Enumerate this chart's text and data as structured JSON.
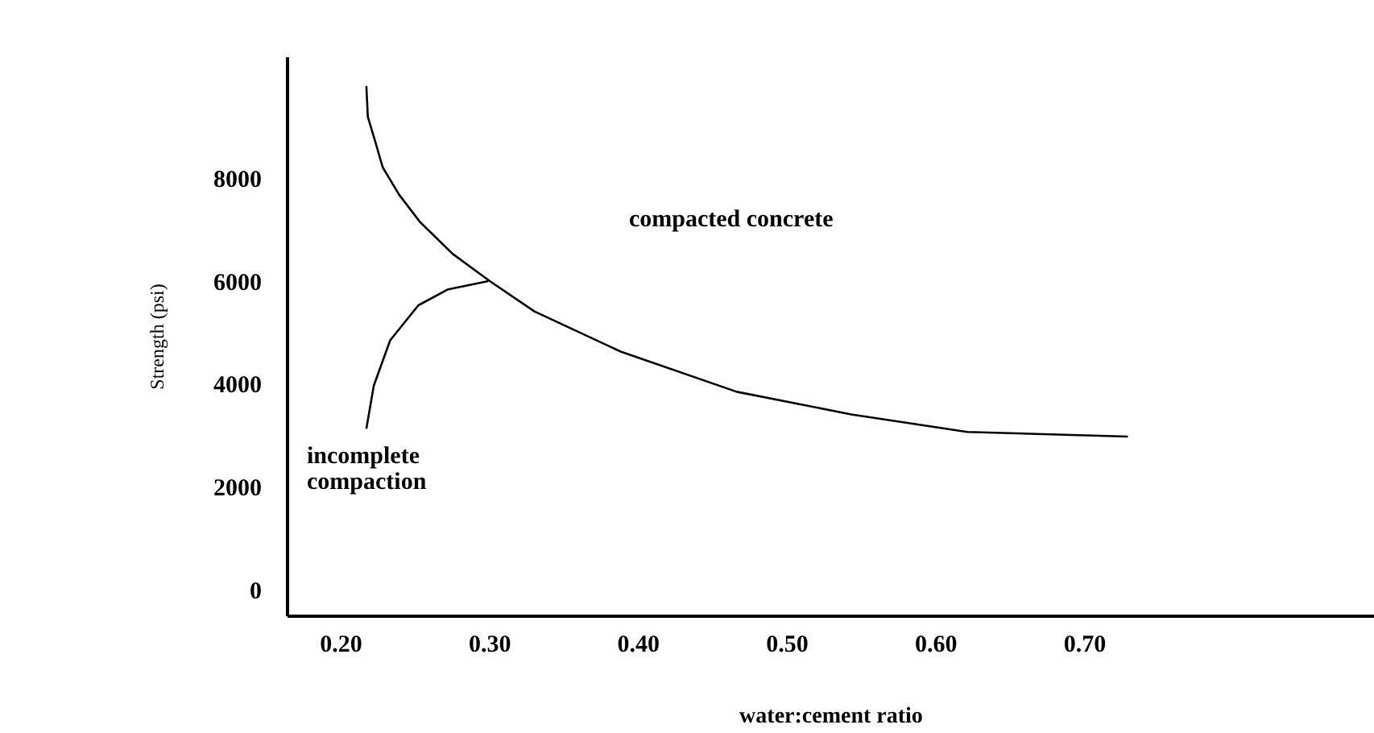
{
  "chart_data": {
    "type": "line",
    "xlabel": "water:cement ratio",
    "ylabel": "Strength (psi)",
    "xlim": [
      0.164,
      0.895
    ],
    "ylim": [
      -500,
      10360
    ],
    "xticks": [
      {
        "value": 0.2,
        "label": "0.20"
      },
      {
        "value": 0.3,
        "label": "0.30"
      },
      {
        "value": 0.4,
        "label": "0.40"
      },
      {
        "value": 0.5,
        "label": "0.50"
      },
      {
        "value": 0.6,
        "label": "0.60"
      },
      {
        "value": 0.7,
        "label": "0.70"
      }
    ],
    "yticks": [
      0,
      2000,
      4000,
      6000,
      8000
    ],
    "grid": false,
    "marker": "none",
    "line_style": "solid",
    "annotations": [
      "compacted concrete",
      "incomplete compaction"
    ],
    "series": [
      {
        "color": "#000000",
        "x": [
          0.217,
          0.218,
          0.223,
          0.228,
          0.239,
          0.253,
          0.275,
          0.3,
          0.33,
          0.388,
          0.466,
          0.543,
          0.621,
          0.729
        ],
        "values": [
          9800,
          9200,
          8720,
          8220,
          7690,
          7160,
          6540,
          6010,
          5420,
          4640,
          3860,
          3420,
          3080,
          2990
        ]
      },
      {
        "color": "#000000",
        "x": [
          0.217,
          0.222,
          0.233,
          0.252,
          0.272,
          0.299
        ],
        "values": [
          3140,
          3980,
          4860,
          5540,
          5850,
          6010
        ]
      }
    ]
  }
}
